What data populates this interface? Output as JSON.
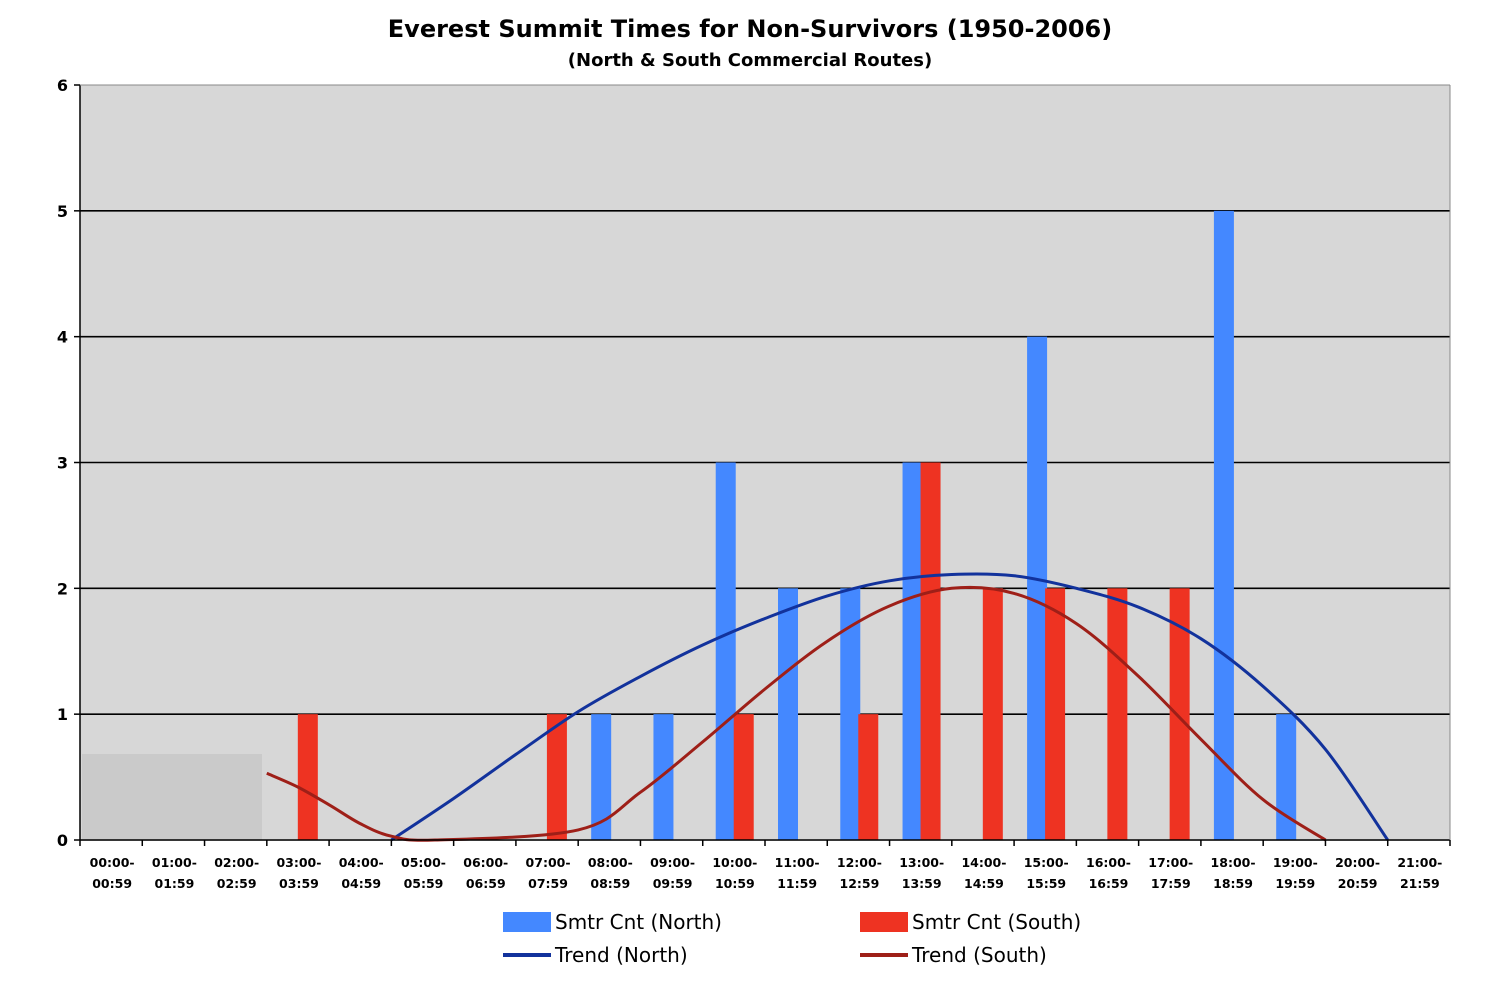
{
  "chart_data": {
    "type": "bar",
    "title": "Everest Summit Times for Non-Survivors (1950-2006)",
    "subtitle": "(North & South Commercial Routes)",
    "categories": [
      [
        "00:00-",
        "00:59"
      ],
      [
        "01:00-",
        "01:59"
      ],
      [
        "02:00-",
        "02:59"
      ],
      [
        "03:00-",
        "03:59"
      ],
      [
        "04:00-",
        "04:59"
      ],
      [
        "05:00-",
        "05:59"
      ],
      [
        "06:00-",
        "06:59"
      ],
      [
        "07:00-",
        "07:59"
      ],
      [
        "08:00-",
        "08:59"
      ],
      [
        "09:00-",
        "09:59"
      ],
      [
        "10:00-",
        "10:59"
      ],
      [
        "11:00-",
        "11:59"
      ],
      [
        "12:00-",
        "12:59"
      ],
      [
        "13:00-",
        "13:59"
      ],
      [
        "14:00-",
        "14:59"
      ],
      [
        "15:00-",
        "15:59"
      ],
      [
        "16:00-",
        "16:59"
      ],
      [
        "17:00-",
        "17:59"
      ],
      [
        "18:00-",
        "18:59"
      ],
      [
        "19:00-",
        "19:59"
      ],
      [
        "20:00-",
        "20:59"
      ],
      [
        "21:00-",
        "21:59"
      ]
    ],
    "series": [
      {
        "name": "Smtr Cnt (North)",
        "color": "#4488ff",
        "values": [
          0,
          0,
          0,
          0,
          0,
          0,
          0,
          0,
          1,
          1,
          3,
          2,
          2,
          3,
          0,
          4,
          0,
          0,
          5,
          1,
          0,
          0
        ]
      },
      {
        "name": "Smtr Cnt (South)",
        "color": "#ee3322",
        "values": [
          0,
          0,
          0,
          1,
          0,
          0,
          0,
          1,
          0,
          0,
          1,
          0,
          1,
          3,
          2,
          2,
          2,
          2,
          0,
          0,
          0,
          0
        ]
      }
    ],
    "trendlines": [
      {
        "name": "Trend (North)",
        "color": "#12329c",
        "points": [
          [
            5,
            0
          ],
          [
            6,
            0.33
          ],
          [
            7,
            0.68
          ],
          [
            8,
            1.02
          ],
          [
            9,
            1.3
          ],
          [
            10,
            1.55
          ],
          [
            11,
            1.76
          ],
          [
            12,
            1.94
          ],
          [
            13,
            2.06
          ],
          [
            14,
            2.11
          ],
          [
            15,
            2.1
          ],
          [
            16,
            2.0
          ],
          [
            17,
            1.85
          ],
          [
            18,
            1.6
          ],
          [
            19,
            1.22
          ],
          [
            20,
            0.72
          ],
          [
            21,
            0.0
          ]
        ]
      },
      {
        "name": "Trend (South)",
        "color": "#9e1f18",
        "points": [
          [
            3,
            0.53
          ],
          [
            3.5,
            0.42
          ],
          [
            4,
            0.28
          ],
          [
            4.5,
            0.13
          ],
          [
            5,
            0.03
          ],
          [
            5.7,
            0
          ],
          [
            8,
            0.08
          ],
          [
            9,
            0.38
          ],
          [
            10,
            0.78
          ],
          [
            11,
            1.2
          ],
          [
            12,
            1.58
          ],
          [
            13,
            1.86
          ],
          [
            14,
            2.0
          ],
          [
            15,
            1.96
          ],
          [
            16,
            1.72
          ],
          [
            17,
            1.3
          ],
          [
            18,
            0.8
          ],
          [
            19,
            0.32
          ],
          [
            20,
            0.0
          ]
        ]
      }
    ],
    "ylim": [
      0,
      6
    ],
    "yticks": [
      0,
      1,
      2,
      3,
      4,
      5,
      6
    ],
    "grid": true,
    "legend_position": "bottom",
    "colors": {
      "plot_background": "#d7d7d7",
      "gridline": "#000000",
      "shade_box": "#cacaca"
    }
  }
}
